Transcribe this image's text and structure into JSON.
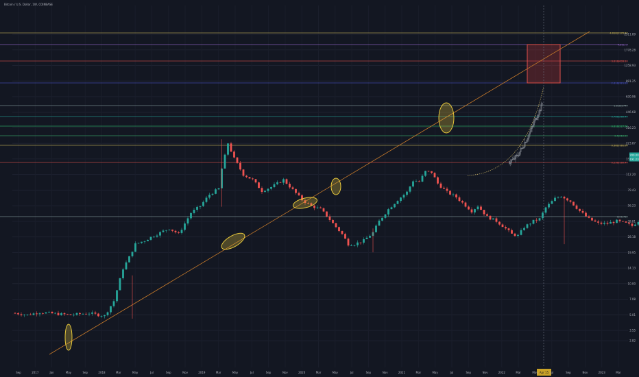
{
  "header": {
    "symbol_text": "Bitcoin / U.S. Dollar, 1W, COINBASE"
  },
  "chart_data": {
    "type": "candlestick",
    "y_scale": "log",
    "ylim": [
      2.5,
      3100
    ],
    "ticks": {
      "y_log10": [
        0.45,
        0.55,
        0.7,
        0.85,
        1.0,
        1.15,
        1.3,
        1.45,
        1.6,
        1.75,
        1.9,
        2.05,
        2.2,
        2.35,
        2.5,
        2.65,
        2.8,
        2.95,
        3.1,
        3.25,
        3.4
      ],
      "y_labels": [
        "2.82",
        "3.55",
        "5.01",
        "7.08",
        "10.00",
        "14.13",
        "19.95",
        "28.18",
        "39.81",
        "56.23",
        "79.43",
        "112.20",
        "158.49",
        "223.87",
        "316.23",
        "446.68",
        "630.96",
        "891.25",
        "1258.93",
        "1778.28",
        "2511.89"
      ],
      "x_labels": [
        "Sep",
        "2017",
        "Jan",
        "May",
        "Sep",
        "2018",
        "Mar",
        "May",
        "Jul",
        "Sep",
        "Nov",
        "2019",
        "Mar",
        "May",
        "Jul",
        "Sep",
        "Nov",
        "2020",
        "Mar",
        "May",
        "Jul",
        "Sep",
        "Nov",
        "2021",
        "Mar",
        "May",
        "Jul",
        "Sep",
        "Nov",
        "2022",
        "Mar",
        "May",
        "Jul",
        "Sep",
        "Nov",
        "2023",
        "Mar"
      ]
    },
    "fib_levels": [
      {
        "label": "4.618(1176.4)",
        "color": "#c9b458"
      },
      {
        "label": "4.2(1...)",
        "color": "#9c6bd6"
      },
      {
        "label": "3.618(633.1)",
        "color": "#e0504c"
      },
      {
        "label": "2.618(321.2)",
        "color": "#4a54c9"
      },
      {
        "label": "1.618(174)",
        "color": "#8aa0a0"
      },
      {
        "label": "0.786(260.4)",
        "color": "#26a69a"
      },
      {
        "label": "0.618(227.3)",
        "color": "#2fbf71"
      },
      {
        "label": "0.5(212.9)",
        "color": "#3cb371"
      },
      {
        "label": "0.382(181.9)",
        "color": "#c9b458"
      },
      {
        "label": "0.236(160.4)",
        "color": "#e0504c"
      },
      {
        "label": "0(56.78)",
        "color": "#8aa0a0"
      }
    ],
    "price_tags": [
      {
        "label": "200.00",
        "color": "#26a69a"
      },
      {
        "label": "191.23",
        "color": "#26a69a"
      }
    ],
    "date_tag": {
      "label": "Apr 15"
    },
    "colors": {
      "up": "#26a69a",
      "down": "#ef5350",
      "projection": "#9aa0a8",
      "trendline": "#c77a2a",
      "ellipse": "#e8c93c",
      "box_fill": "rgba(220,60,60,0.25)",
      "box_stroke": "#e0504c"
    }
  }
}
